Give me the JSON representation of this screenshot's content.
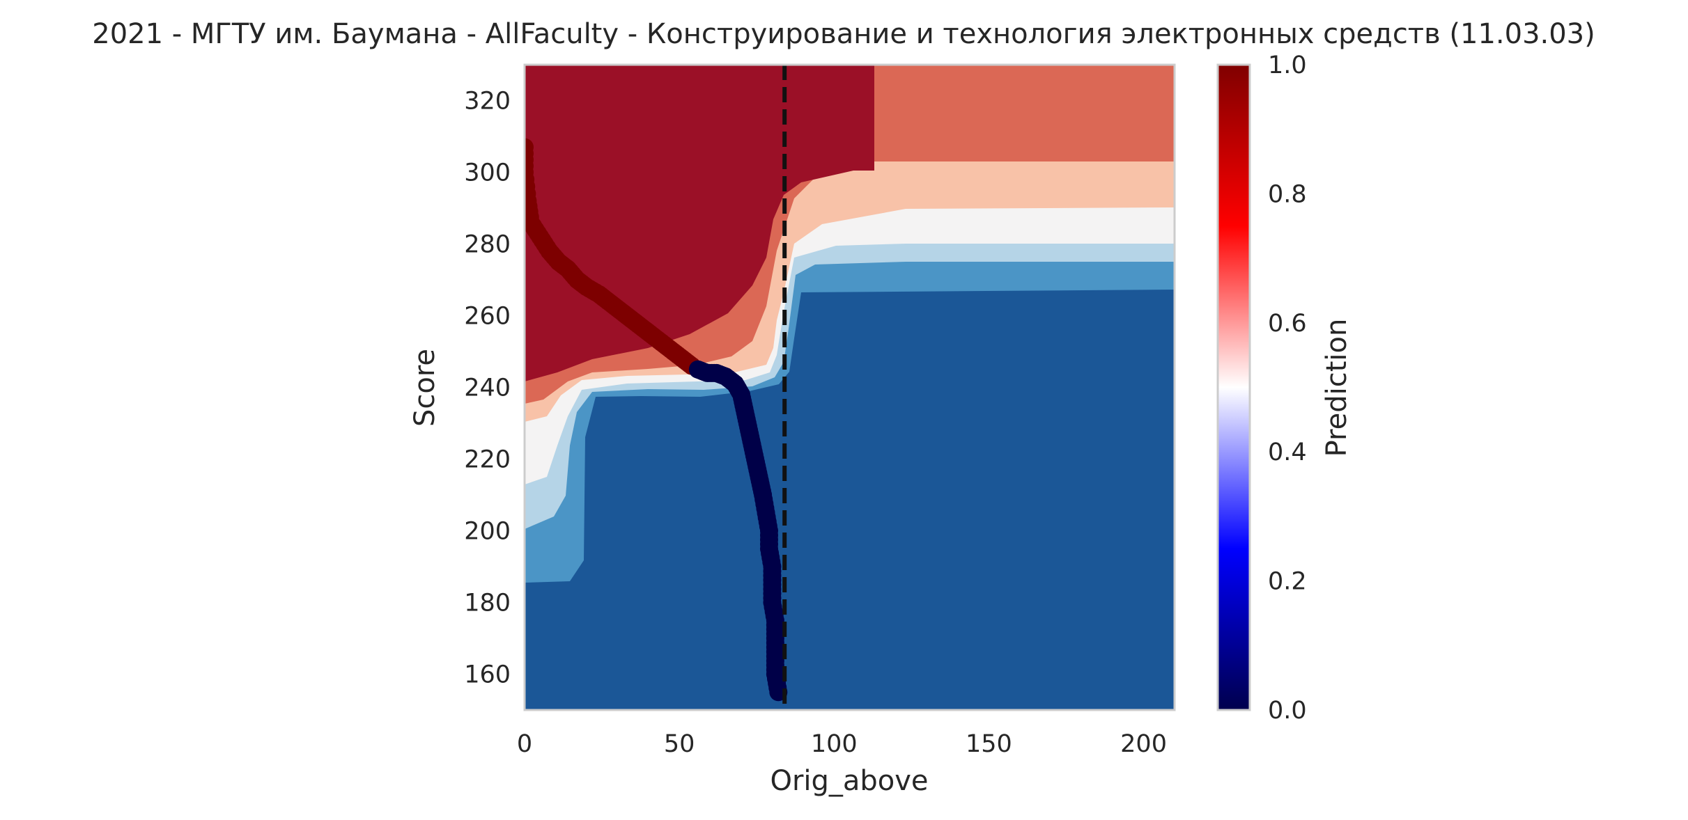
{
  "chart_data": {
    "type": "heatmap",
    "title": "2021 - МГТУ им. Баумана - AllFaculty - Конструирование и технология электронных средств (11.03.03)",
    "xlabel": "Orig_above",
    "ylabel": "Score",
    "xlim": [
      0,
      210
    ],
    "ylim": [
      150,
      330
    ],
    "xticks": [
      0,
      50,
      100,
      150,
      200
    ],
    "yticks": [
      160,
      180,
      200,
      220,
      240,
      260,
      280,
      300,
      320
    ],
    "grid": false,
    "colorbar": {
      "label": "Prediction",
      "range": [
        0,
        1
      ],
      "ticks": [
        "0.0",
        "0.2",
        "0.4",
        "0.6",
        "0.8",
        "1.0"
      ],
      "colormap": "seismic",
      "stops": [
        "#00004d",
        "#0000ff",
        "#ffffff",
        "#ff0000",
        "#800000"
      ]
    },
    "contour_levels": [
      {
        "level": 0.9,
        "color": "#9b1027"
      },
      {
        "level": 0.7,
        "color": "#db6855"
      },
      {
        "level": 0.6,
        "color": "#f8c2a8"
      },
      {
        "level": 0.5,
        "color": "#f4f3f3"
      },
      {
        "level": 0.4,
        "color": "#b5d4e7"
      },
      {
        "level": 0.3,
        "color": "#4b95c6"
      },
      {
        "level": 0.1,
        "color": "#1b5797"
      }
    ],
    "reference_line": {
      "x": 84,
      "style": "dashed",
      "color": "#111111"
    },
    "trajectory": {
      "color_high": "#7d0000",
      "color_low": "#000048",
      "points_high": [
        [
          0,
          307
        ],
        [
          0,
          300
        ],
        [
          1,
          292
        ],
        [
          2,
          286
        ],
        [
          5,
          282
        ],
        [
          8,
          278
        ],
        [
          11,
          275
        ],
        [
          14,
          273
        ],
        [
          17,
          270
        ],
        [
          20,
          268
        ],
        [
          24,
          266
        ],
        [
          27,
          264
        ],
        [
          30,
          262
        ],
        [
          33,
          260
        ],
        [
          36,
          258
        ],
        [
          39,
          256
        ],
        [
          42,
          254
        ],
        [
          45,
          252
        ],
        [
          48,
          250
        ],
        [
          51,
          248
        ],
        [
          54,
          246
        ]
      ],
      "points_low": [
        [
          56,
          245
        ],
        [
          59,
          244
        ],
        [
          62,
          244
        ],
        [
          65,
          243
        ],
        [
          68,
          241
        ],
        [
          70,
          238
        ],
        [
          71,
          234
        ],
        [
          72,
          230
        ],
        [
          73,
          226
        ],
        [
          74,
          222
        ],
        [
          75,
          218
        ],
        [
          76,
          214
        ],
        [
          77,
          210
        ],
        [
          78,
          205
        ],
        [
          79,
          200
        ],
        [
          79,
          195
        ],
        [
          80,
          190
        ],
        [
          80,
          185
        ],
        [
          80,
          180
        ],
        [
          81,
          175
        ],
        [
          81,
          170
        ],
        [
          81,
          165
        ],
        [
          81,
          160
        ],
        [
          82,
          155
        ]
      ]
    }
  }
}
